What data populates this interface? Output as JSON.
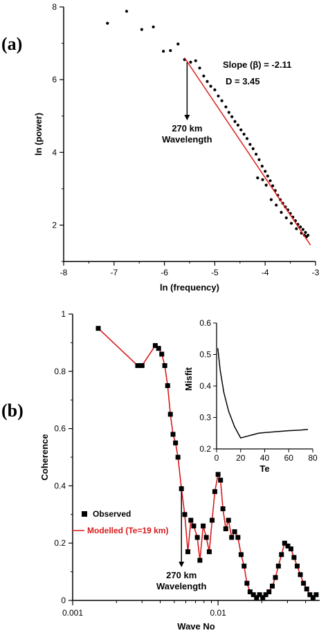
{
  "panels": {
    "a_label": "(a)",
    "b_label": "(b)"
  },
  "colors": {
    "fit_line": "#e31a1c",
    "points": "#000000",
    "modelled": "#d7191c",
    "legend_modelled_text": "#d7191c"
  },
  "chart_data": [
    {
      "type": "scatter",
      "xlabel": "ln (frequency)",
      "ylabel": "ln (power)",
      "xlim": [
        -8,
        -3
      ],
      "ylim": [
        1.0,
        8
      ],
      "xticks": [
        -8,
        -7,
        -6,
        -5,
        -4,
        -3
      ],
      "yticks": [
        2,
        4,
        6,
        8
      ],
      "annotations": {
        "slope": "Slope (β) = -2.11",
        "dimension": "D = 3.45",
        "wavelength_line1": "270 km",
        "wavelength_line2": "Wavelength",
        "arrow_x": -5.55
      },
      "fit_line": {
        "x": [
          -5.6,
          -3.1
        ],
        "y": [
          6.6,
          1.45
        ]
      },
      "points": [
        [
          -7.13,
          7.55
        ],
        [
          -6.75,
          7.88
        ],
        [
          -6.45,
          7.38
        ],
        [
          -6.22,
          7.45
        ],
        [
          -6.02,
          6.78
        ],
        [
          -5.88,
          6.8
        ],
        [
          -5.73,
          6.98
        ],
        [
          -5.6,
          6.55
        ],
        [
          -5.48,
          6.48
        ],
        [
          -5.38,
          6.52
        ],
        [
          -5.3,
          6.32
        ],
        [
          -5.22,
          6.1
        ],
        [
          -5.15,
          5.95
        ],
        [
          -5.08,
          5.82
        ],
        [
          -5.0,
          5.72
        ],
        [
          -4.93,
          5.55
        ],
        [
          -4.86,
          5.42
        ],
        [
          -4.78,
          5.25
        ],
        [
          -4.72,
          5.1
        ],
        [
          -4.66,
          4.98
        ],
        [
          -4.6,
          4.85
        ],
        [
          -4.54,
          4.75
        ],
        [
          -4.48,
          4.62
        ],
        [
          -4.42,
          4.5
        ],
        [
          -4.36,
          4.38
        ],
        [
          -4.3,
          4.22
        ],
        [
          -4.24,
          4.1
        ],
        [
          -4.18,
          3.95
        ],
        [
          -4.12,
          3.8
        ],
        [
          -4.06,
          3.62
        ],
        [
          -4.0,
          3.48
        ],
        [
          -3.95,
          3.35
        ],
        [
          -3.9,
          3.22
        ],
        [
          -3.85,
          3.08
        ],
        [
          -3.8,
          2.95
        ],
        [
          -3.75,
          2.82
        ],
        [
          -3.7,
          2.7
        ],
        [
          -3.65,
          2.6
        ],
        [
          -3.6,
          2.5
        ],
        [
          -3.55,
          2.42
        ],
        [
          -3.5,
          2.32
        ],
        [
          -3.45,
          2.22
        ],
        [
          -3.4,
          2.12
        ],
        [
          -3.35,
          2.02
        ],
        [
          -3.3,
          1.95
        ],
        [
          -3.25,
          1.88
        ],
        [
          -3.2,
          1.8
        ],
        [
          -3.15,
          1.72
        ],
        [
          -4.15,
          3.3
        ],
        [
          -4.05,
          3.25
        ],
        [
          -3.98,
          3.1
        ],
        [
          -3.88,
          2.7
        ],
        [
          -3.78,
          2.55
        ],
        [
          -3.68,
          2.35
        ],
        [
          -3.58,
          2.2
        ],
        [
          -3.48,
          2.05
        ],
        [
          -3.38,
          1.9
        ],
        [
          -3.28,
          1.78
        ],
        [
          -3.22,
          1.72
        ],
        [
          -3.18,
          1.68
        ]
      ]
    },
    {
      "type": "line",
      "xlabel": "Wave No",
      "ylabel": "Coherence",
      "xscale": "log",
      "xlim": [
        0.001,
        0.05
      ],
      "ylim": [
        0,
        1
      ],
      "xticks": [
        0.001,
        0.01
      ],
      "xtick_labels": [
        "0.001",
        "0.01"
      ],
      "yticks": [
        0,
        0.2,
        0.4,
        0.6,
        0.8,
        1
      ],
      "legend": {
        "placement": "left",
        "observed": "Observed",
        "modelled": "Modelled (Te=19 km)"
      },
      "annotations": {
        "wavelength_line1": "270 km",
        "wavelength_line2": "Wavelength",
        "arrow_x": 0.0056
      },
      "series": [
        {
          "name": "Observed",
          "x": [
            0.0015,
            0.0028,
            0.003,
            0.0037,
            0.0039,
            0.0041,
            0.0043,
            0.0045,
            0.0047,
            0.0049,
            0.0051,
            0.0053,
            0.0056,
            0.0059,
            0.0062,
            0.0065,
            0.0068,
            0.0072,
            0.0075,
            0.0079,
            0.0083,
            0.0087,
            0.0091,
            0.0095,
            0.01,
            0.0104,
            0.0108,
            0.0113,
            0.0118,
            0.0124,
            0.013,
            0.0137,
            0.0144,
            0.0151,
            0.0158,
            0.0166,
            0.0175,
            0.0184,
            0.0193,
            0.0203,
            0.0213,
            0.0224,
            0.0236,
            0.0248,
            0.026,
            0.0273,
            0.0287,
            0.0302,
            0.0317,
            0.0333,
            0.035,
            0.0368,
            0.0387,
            0.0407,
            0.0428,
            0.045,
            0.0473
          ],
          "y": [
            0.95,
            0.82,
            0.82,
            0.89,
            0.88,
            0.86,
            0.82,
            0.75,
            0.65,
            0.58,
            0.55,
            0.5,
            0.39,
            0.3,
            0.17,
            0.28,
            0.26,
            0.22,
            0.14,
            0.26,
            0.22,
            0.17,
            0.28,
            0.38,
            0.44,
            0.42,
            0.32,
            0.25,
            0.28,
            0.22,
            0.24,
            0.22,
            0.16,
            0.12,
            0.06,
            0.03,
            0.02,
            0.01,
            0.02,
            0.01,
            0.02,
            0.03,
            0.05,
            0.08,
            0.12,
            0.16,
            0.2,
            0.19,
            0.18,
            0.15,
            0.12,
            0.09,
            0.06,
            0.04,
            0.02,
            0.01,
            0.02
          ]
        },
        {
          "name": "Modelled (Te=19 km)",
          "x": [
            0.0015,
            0.0028,
            0.003,
            0.0037,
            0.0039,
            0.0041,
            0.0043,
            0.0045,
            0.0047,
            0.0049,
            0.0051,
            0.0053,
            0.0056,
            0.0059,
            0.0062,
            0.0065,
            0.0068,
            0.0072,
            0.0075,
            0.0079,
            0.0083,
            0.0087,
            0.0091,
            0.0095,
            0.01,
            0.0104,
            0.0108,
            0.0113,
            0.0118,
            0.0124,
            0.013,
            0.0137,
            0.0144,
            0.0151,
            0.0158,
            0.0166,
            0.0175,
            0.0184,
            0.0193,
            0.0203,
            0.0213,
            0.0224,
            0.0236,
            0.0248,
            0.026,
            0.0273,
            0.0287,
            0.0302,
            0.0317,
            0.0333,
            0.035,
            0.0368,
            0.0387,
            0.0407,
            0.0428,
            0.045,
            0.0473
          ],
          "y": [
            0.95,
            0.82,
            0.82,
            0.89,
            0.88,
            0.86,
            0.82,
            0.75,
            0.65,
            0.58,
            0.55,
            0.5,
            0.39,
            0.3,
            0.17,
            0.28,
            0.26,
            0.22,
            0.14,
            0.26,
            0.22,
            0.17,
            0.28,
            0.38,
            0.44,
            0.42,
            0.32,
            0.25,
            0.28,
            0.22,
            0.24,
            0.22,
            0.16,
            0.12,
            0.06,
            0.03,
            0.02,
            0.01,
            0.02,
            0.01,
            0.02,
            0.03,
            0.05,
            0.08,
            0.12,
            0.16,
            0.2,
            0.19,
            0.18,
            0.15,
            0.12,
            0.09,
            0.06,
            0.04,
            0.02,
            0.01,
            0.02
          ]
        }
      ]
    },
    {
      "type": "line",
      "xlabel": "Te",
      "ylabel": "Misfit",
      "xlim": [
        0,
        80
      ],
      "ylim": [
        0.2,
        0.6
      ],
      "xticks": [
        0,
        20,
        40,
        60,
        80
      ],
      "yticks": [
        0.2,
        0.3,
        0.4,
        0.5,
        0.6
      ],
      "series": [
        {
          "x": [
            1,
            3,
            6,
            10,
            15,
            20,
            25,
            30,
            35,
            40,
            50,
            60,
            70,
            76
          ],
          "y": [
            0.52,
            0.45,
            0.38,
            0.32,
            0.27,
            0.235,
            0.24,
            0.245,
            0.25,
            0.252,
            0.255,
            0.258,
            0.26,
            0.262
          ]
        }
      ]
    }
  ]
}
